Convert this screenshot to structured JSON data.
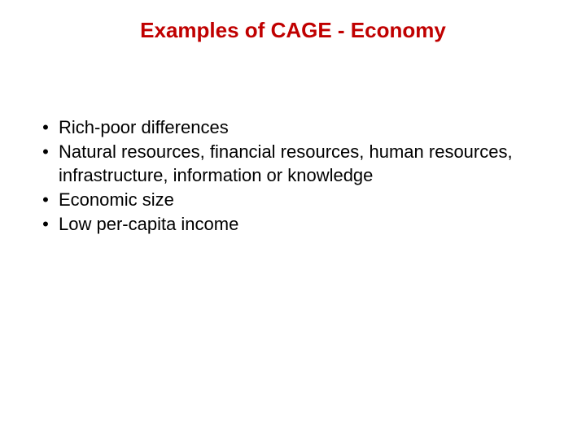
{
  "title": {
    "text": "Examples of CAGE - Economy",
    "color": "#c00000",
    "fontsize": 26
  },
  "bullets": {
    "items": [
      "Rich-poor differences",
      "Natural resources, financial resources, human resources, infrastructure, information or knowledge",
      "Economic size",
      "Low per-capita income"
    ],
    "text_color": "#000000",
    "fontsize": 22,
    "marker": "•"
  }
}
